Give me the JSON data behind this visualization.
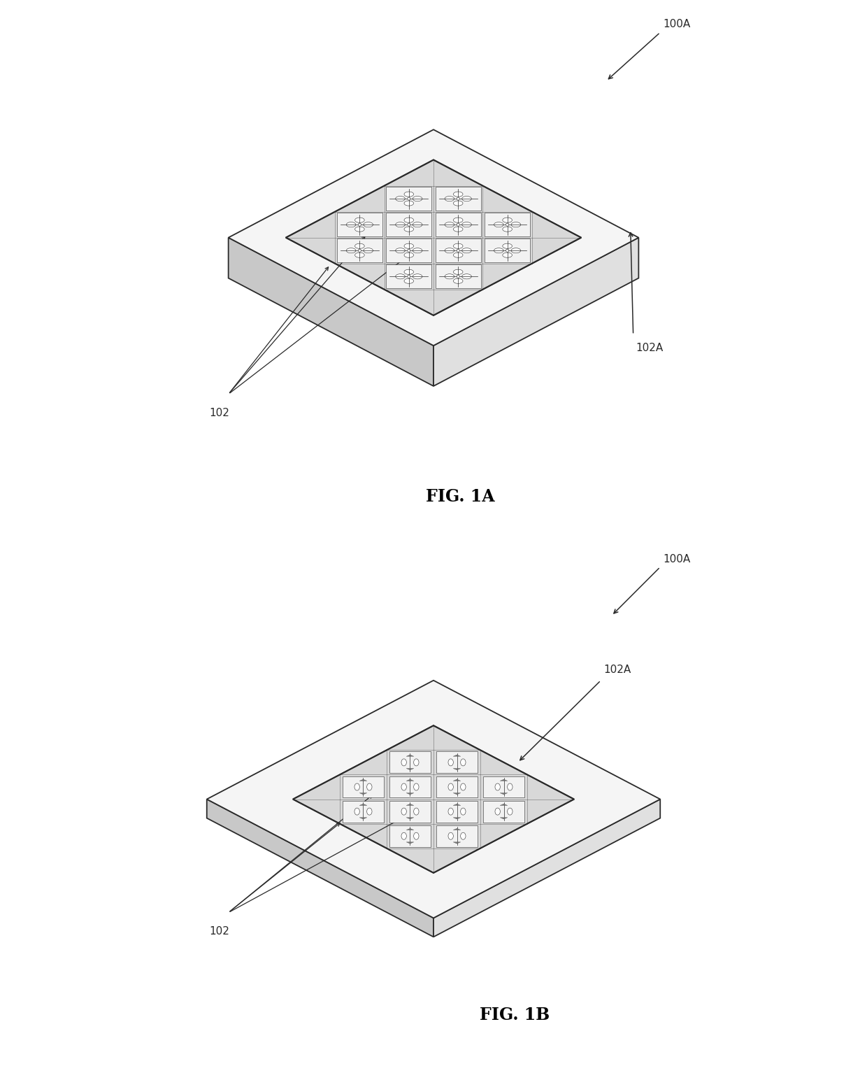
{
  "fig_width": 12.4,
  "fig_height": 15.44,
  "background_color": "#ffffff",
  "line_color": "#2a2a2a",
  "lw_main": 1.3,
  "lw_thin": 0.6,
  "fig1a_label": "FIG. 1A",
  "fig1b_label": "FIG. 1B",
  "label_100A": "100A",
  "label_102": "102",
  "label_102A": "102A",
  "label_fontsize": 11,
  "caption_fontsize": 17,
  "slab_top_color": "#f5f5f5",
  "slab_left_color": "#c8c8c8",
  "slab_right_color": "#e0e0e0",
  "array_bg_color": "#d8d8d8",
  "cell_bg_color": "#f2f2f2"
}
